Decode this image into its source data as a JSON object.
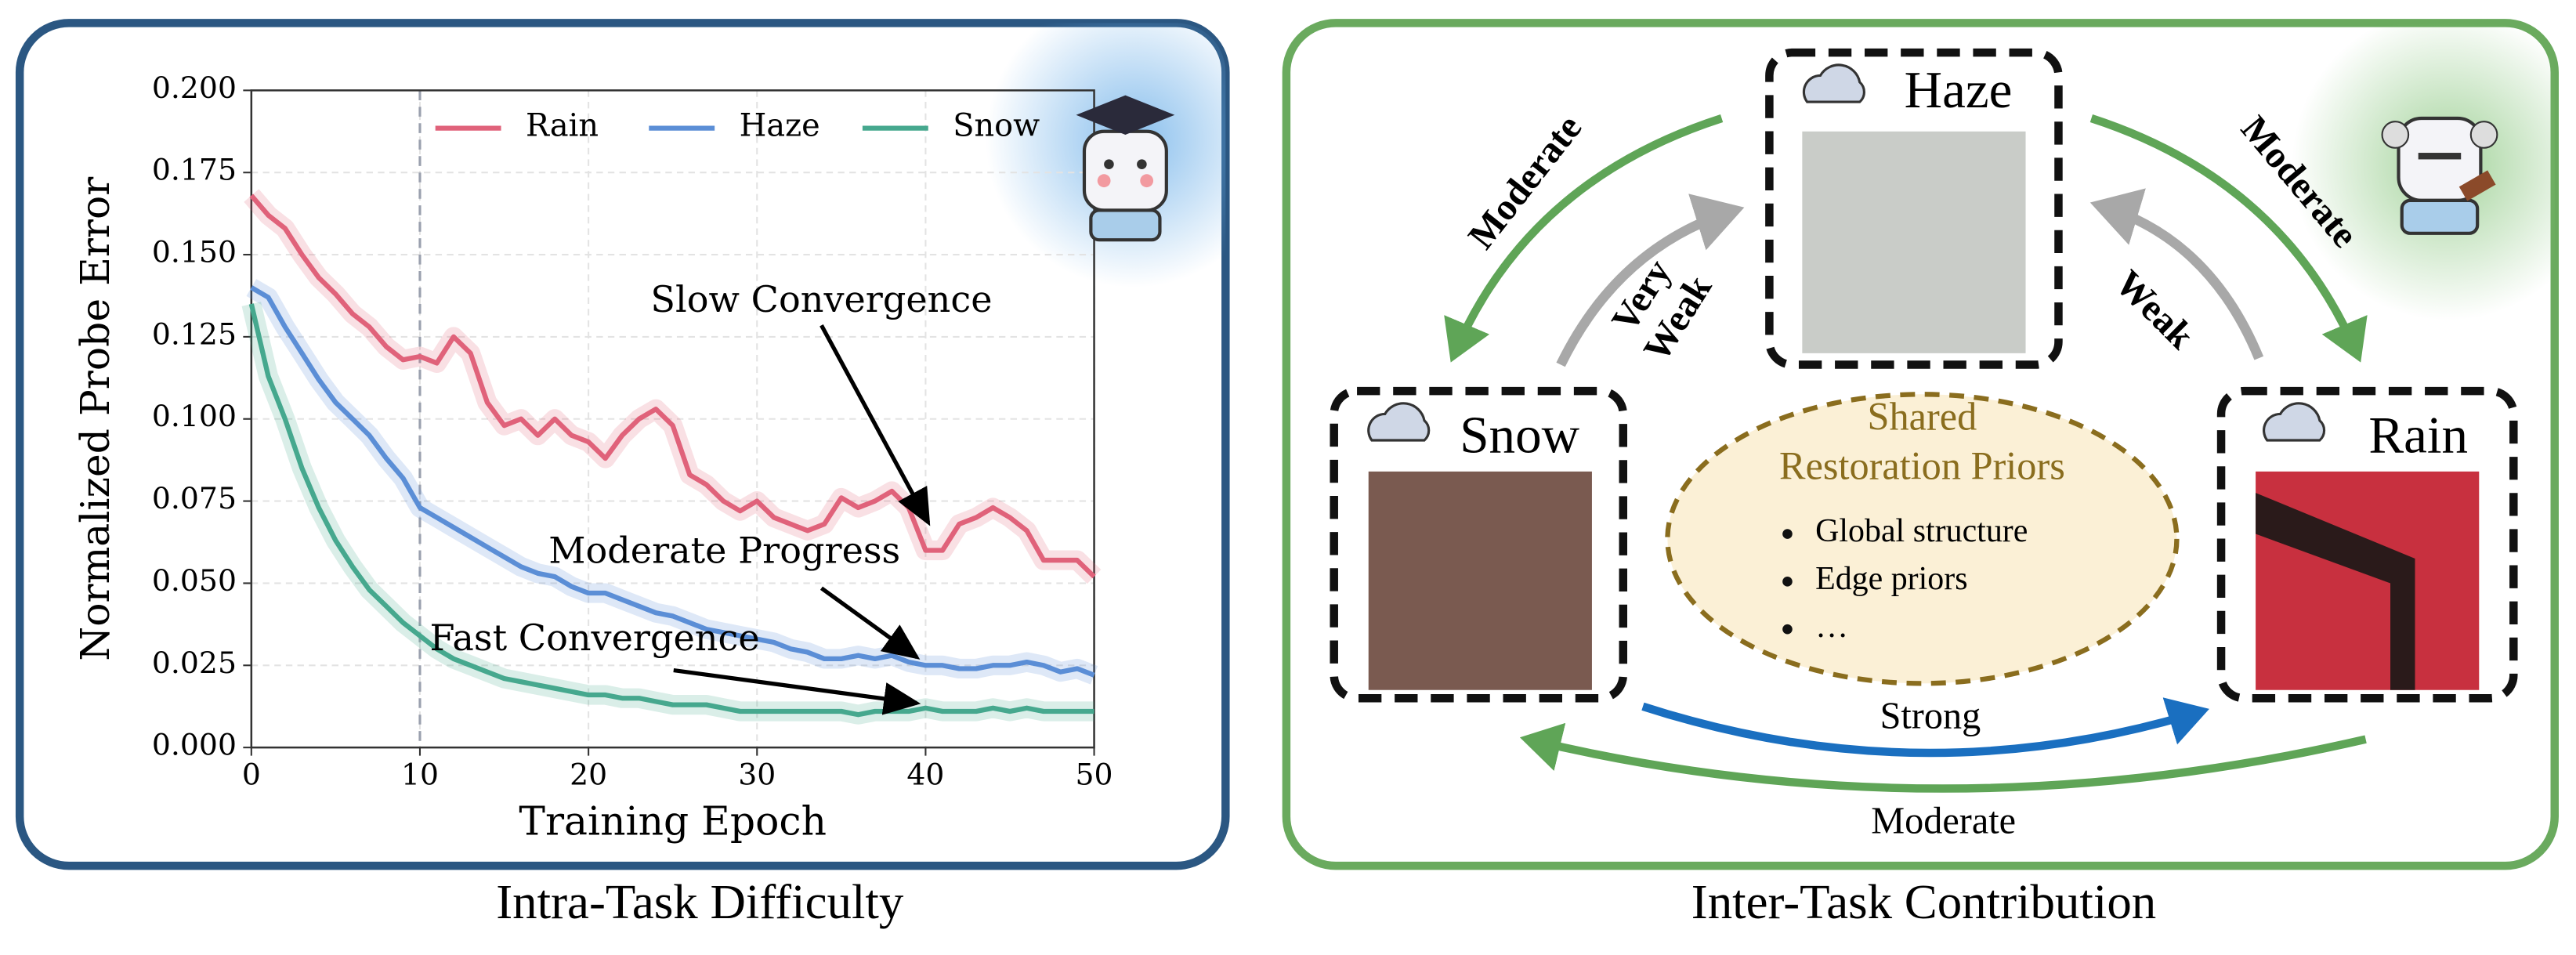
{
  "chart_data": {
    "type": "line",
    "xlabel": "Training Epoch",
    "ylabel": "Normalized Probe Error",
    "x": [
      0,
      1,
      2,
      3,
      4,
      5,
      6,
      7,
      8,
      9,
      10,
      11,
      12,
      13,
      14,
      15,
      16,
      17,
      18,
      19,
      20,
      21,
      22,
      23,
      24,
      25,
      26,
      27,
      28,
      29,
      30,
      31,
      32,
      33,
      34,
      35,
      36,
      37,
      38,
      39,
      40,
      41,
      42,
      43,
      44,
      45,
      46,
      47,
      48,
      49,
      50
    ],
    "series": [
      {
        "name": "Rain",
        "color": "#e0627a",
        "values": [
          0.168,
          0.162,
          0.158,
          0.15,
          0.143,
          0.138,
          0.132,
          0.128,
          0.122,
          0.118,
          0.119,
          0.117,
          0.125,
          0.12,
          0.105,
          0.098,
          0.1,
          0.095,
          0.1,
          0.095,
          0.093,
          0.088,
          0.095,
          0.1,
          0.103,
          0.098,
          0.083,
          0.08,
          0.075,
          0.072,
          0.075,
          0.07,
          0.068,
          0.066,
          0.068,
          0.076,
          0.073,
          0.075,
          0.078,
          0.073,
          0.06,
          0.06,
          0.068,
          0.07,
          0.073,
          0.07,
          0.066,
          0.057,
          0.057,
          0.057,
          0.052
        ]
      },
      {
        "name": "Haze",
        "color": "#5b8ed6",
        "values": [
          0.14,
          0.137,
          0.128,
          0.12,
          0.112,
          0.105,
          0.1,
          0.095,
          0.088,
          0.082,
          0.073,
          0.07,
          0.067,
          0.064,
          0.061,
          0.058,
          0.055,
          0.053,
          0.052,
          0.049,
          0.047,
          0.047,
          0.045,
          0.043,
          0.041,
          0.04,
          0.038,
          0.036,
          0.035,
          0.034,
          0.033,
          0.032,
          0.03,
          0.029,
          0.027,
          0.027,
          0.028,
          0.027,
          0.028,
          0.026,
          0.025,
          0.025,
          0.024,
          0.024,
          0.025,
          0.025,
          0.026,
          0.025,
          0.023,
          0.024,
          0.022
        ]
      },
      {
        "name": "Snow",
        "color": "#46a88e",
        "values": [
          0.135,
          0.113,
          0.1,
          0.085,
          0.073,
          0.063,
          0.055,
          0.048,
          0.043,
          0.038,
          0.034,
          0.03,
          0.027,
          0.025,
          0.023,
          0.021,
          0.02,
          0.019,
          0.018,
          0.017,
          0.016,
          0.016,
          0.015,
          0.015,
          0.014,
          0.013,
          0.013,
          0.013,
          0.012,
          0.011,
          0.011,
          0.011,
          0.011,
          0.011,
          0.011,
          0.011,
          0.01,
          0.011,
          0.011,
          0.011,
          0.012,
          0.011,
          0.011,
          0.011,
          0.012,
          0.011,
          0.012,
          0.011,
          0.011,
          0.011,
          0.011
        ]
      }
    ],
    "xlim": [
      0,
      50
    ],
    "xticks": [
      0,
      10,
      20,
      30,
      40,
      50
    ],
    "ylim": [
      0,
      0.2
    ],
    "yticks": [
      {
        "value": 0,
        "label": "0.000"
      },
      {
        "value": 0.025,
        "label": "0.025"
      },
      {
        "value": 0.05,
        "label": "0.050"
      },
      {
        "value": 0.075,
        "label": "0.075"
      },
      {
        "value": 0.1,
        "label": "0.100"
      },
      {
        "value": 0.125,
        "label": "0.125"
      },
      {
        "value": 0.15,
        "label": "0.150"
      },
      {
        "value": 0.175,
        "label": "0.175"
      },
      {
        "value": 0.2,
        "label": "0.200"
      }
    ],
    "vline": 10,
    "grid": true,
    "legend": "upper right",
    "annotations": [
      "Slow Convergence",
      "Moderate Progress",
      "Fast Convergence"
    ]
  },
  "diagram": {
    "nodes": [
      {
        "label": "Haze"
      },
      {
        "label": "Snow"
      },
      {
        "label": "Rain"
      }
    ],
    "center": {
      "title": [
        "Shared",
        "Restoration Priors"
      ],
      "items": [
        "Global structure",
        "Edge priors",
        "…"
      ]
    },
    "edges": [
      {
        "label": [
          "Moderate"
        ]
      },
      {
        "label": [
          "Very",
          "Weak"
        ]
      },
      {
        "label": [
          "Moderate"
        ]
      },
      {
        "label": [
          "Weak"
        ]
      },
      {
        "label": [
          "Strong"
        ]
      },
      {
        "label": [
          "Moderate"
        ]
      }
    ]
  },
  "captions": [
    "Intra-Task Difficulty",
    "Inter-Task Contribution"
  ]
}
